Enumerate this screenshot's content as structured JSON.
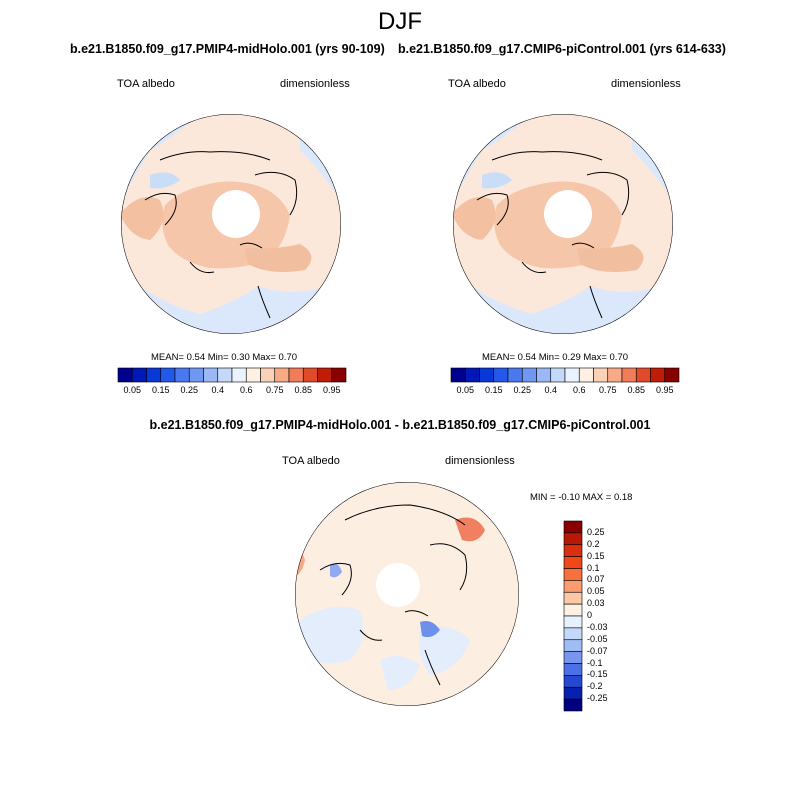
{
  "figure": {
    "season": "DJF"
  },
  "panels": [
    {
      "title": "b.e21.B1850.f09_g17.PMIP4-midHolo.001 (yrs 90-109)",
      "left_label": "TOA albedo",
      "right_label": "dimensionless",
      "stats": "MEAN=   0.54   Min=   0.30   Max=   0.70"
    },
    {
      "title": "b.e21.B1850.f09_g17.CMIP6-piControl.001 (yrs 614-633)",
      "left_label": "TOA albedo",
      "right_label": "dimensionless",
      "stats": "MEAN=   0.54   Min=   0.29   Max=   0.70"
    },
    {
      "title": "b.e21.B1850.f09_g17.PMIP4-midHolo.001 - b.e21.B1850.f09_g17.CMIP6-piControl.001",
      "left_label": "TOA albedo",
      "right_label": "dimensionless",
      "stats": "MIN =  -0.10 MAX =   0.18"
    }
  ],
  "chart_data": [
    {
      "type": "heatmap",
      "projection": "north polar stereographic",
      "field": "TOA albedo",
      "units": "dimensionless",
      "mean": 0.54,
      "min": 0.3,
      "max": 0.7,
      "colorbar": {
        "orientation": "horizontal",
        "levels": [
          "0.05",
          "0.1",
          "0.15",
          "0.2",
          "0.25",
          "0.3",
          "0.4",
          "0.5",
          "0.6",
          "0.7",
          "0.75",
          "0.8",
          "0.85",
          "0.9",
          "0.95"
        ],
        "tick_labels": [
          "0.05",
          "0.15",
          "0.25",
          "0.4",
          "0.6",
          "0.75",
          "0.85",
          "0.95"
        ],
        "colors": [
          "#000090",
          "#0018b8",
          "#0838d8",
          "#2458e8",
          "#4a78ee",
          "#7098f2",
          "#9ab8f6",
          "#c4d8fa",
          "#eaf2ff",
          "#fff0e4",
          "#fcd2b6",
          "#f8aa86",
          "#f07c58",
          "#e04a28",
          "#c01c08",
          "#880000"
        ]
      }
    },
    {
      "type": "heatmap",
      "projection": "north polar stereographic",
      "field": "TOA albedo",
      "units": "dimensionless",
      "mean": 0.54,
      "min": 0.29,
      "max": 0.7,
      "colorbar": {
        "orientation": "horizontal",
        "levels": [
          "0.05",
          "0.1",
          "0.15",
          "0.2",
          "0.25",
          "0.3",
          "0.4",
          "0.5",
          "0.6",
          "0.7",
          "0.75",
          "0.8",
          "0.85",
          "0.9",
          "0.95"
        ],
        "tick_labels": [
          "0.05",
          "0.15",
          "0.25",
          "0.4",
          "0.6",
          "0.75",
          "0.85",
          "0.95"
        ],
        "colors": [
          "#000090",
          "#0018b8",
          "#0838d8",
          "#2458e8",
          "#4a78ee",
          "#7098f2",
          "#9ab8f6",
          "#c4d8fa",
          "#eaf2ff",
          "#fff0e4",
          "#fcd2b6",
          "#f8aa86",
          "#f07c58",
          "#e04a28",
          "#c01c08",
          "#880000"
        ]
      }
    },
    {
      "type": "heatmap",
      "projection": "north polar stereographic",
      "field": "TOA albedo difference",
      "units": "dimensionless",
      "min": -0.1,
      "max": 0.18,
      "colorbar": {
        "orientation": "vertical",
        "levels": [
          "0.25",
          "0.2",
          "0.15",
          "0.1",
          "0.07",
          "0.05",
          "0.03",
          "0",
          "-0.03",
          "-0.05",
          "-0.07",
          "-0.1",
          "-0.15",
          "-0.2",
          "-0.25"
        ],
        "colors": [
          "#880000",
          "#b81808",
          "#d83010",
          "#f04818",
          "#f8703c",
          "#fb9c70",
          "#fdc8a4",
          "#fff0e4",
          "#e8f2ff",
          "#c4d8fa",
          "#a0bcf4",
          "#7896ee",
          "#4c70e6",
          "#2448d0",
          "#0820b0",
          "#000080"
        ]
      }
    }
  ]
}
